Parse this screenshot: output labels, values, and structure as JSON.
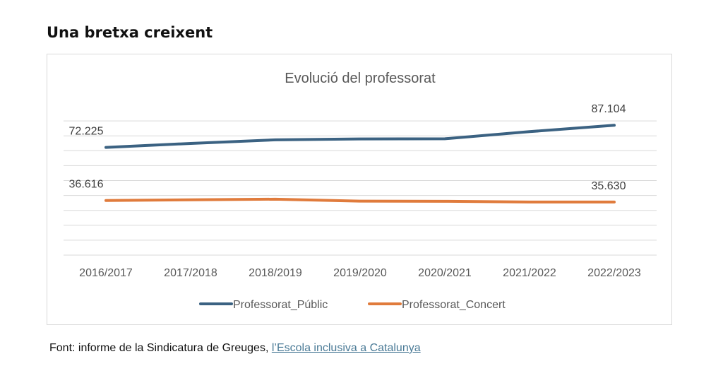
{
  "page": {
    "heading": "Una bretxa creixent",
    "source_prefix": "Font: informe de la Sindicatura de Greuges, ",
    "source_link": "l’Escola inclusiva a Catalunya"
  },
  "chart_data": {
    "type": "line",
    "title": "Evolució del professorat",
    "categories": [
      "2016/2017",
      "2017/2018",
      "2018/2019",
      "2019/2020",
      "2020/2021",
      "2021/2022",
      "2022/2023"
    ],
    "series": [
      {
        "name": "Professorat_Públic",
        "color": "#3b6282",
        "values": [
          72225,
          74900,
          77300,
          77900,
          78000,
          82800,
          87104
        ],
        "labels": [
          "72.225",
          "",
          "",
          "",
          "",
          "",
          "87.104"
        ]
      },
      {
        "name": "Professorat_Concert",
        "color": "#e07b3c",
        "values": [
          36616,
          37100,
          37500,
          36200,
          36100,
          35600,
          35630
        ],
        "labels": [
          "36.616",
          "",
          "",
          "",
          "",
          "",
          "35.630"
        ]
      }
    ],
    "ylim": [
      0,
      100000
    ],
    "grid": true,
    "legend": "bottom"
  }
}
